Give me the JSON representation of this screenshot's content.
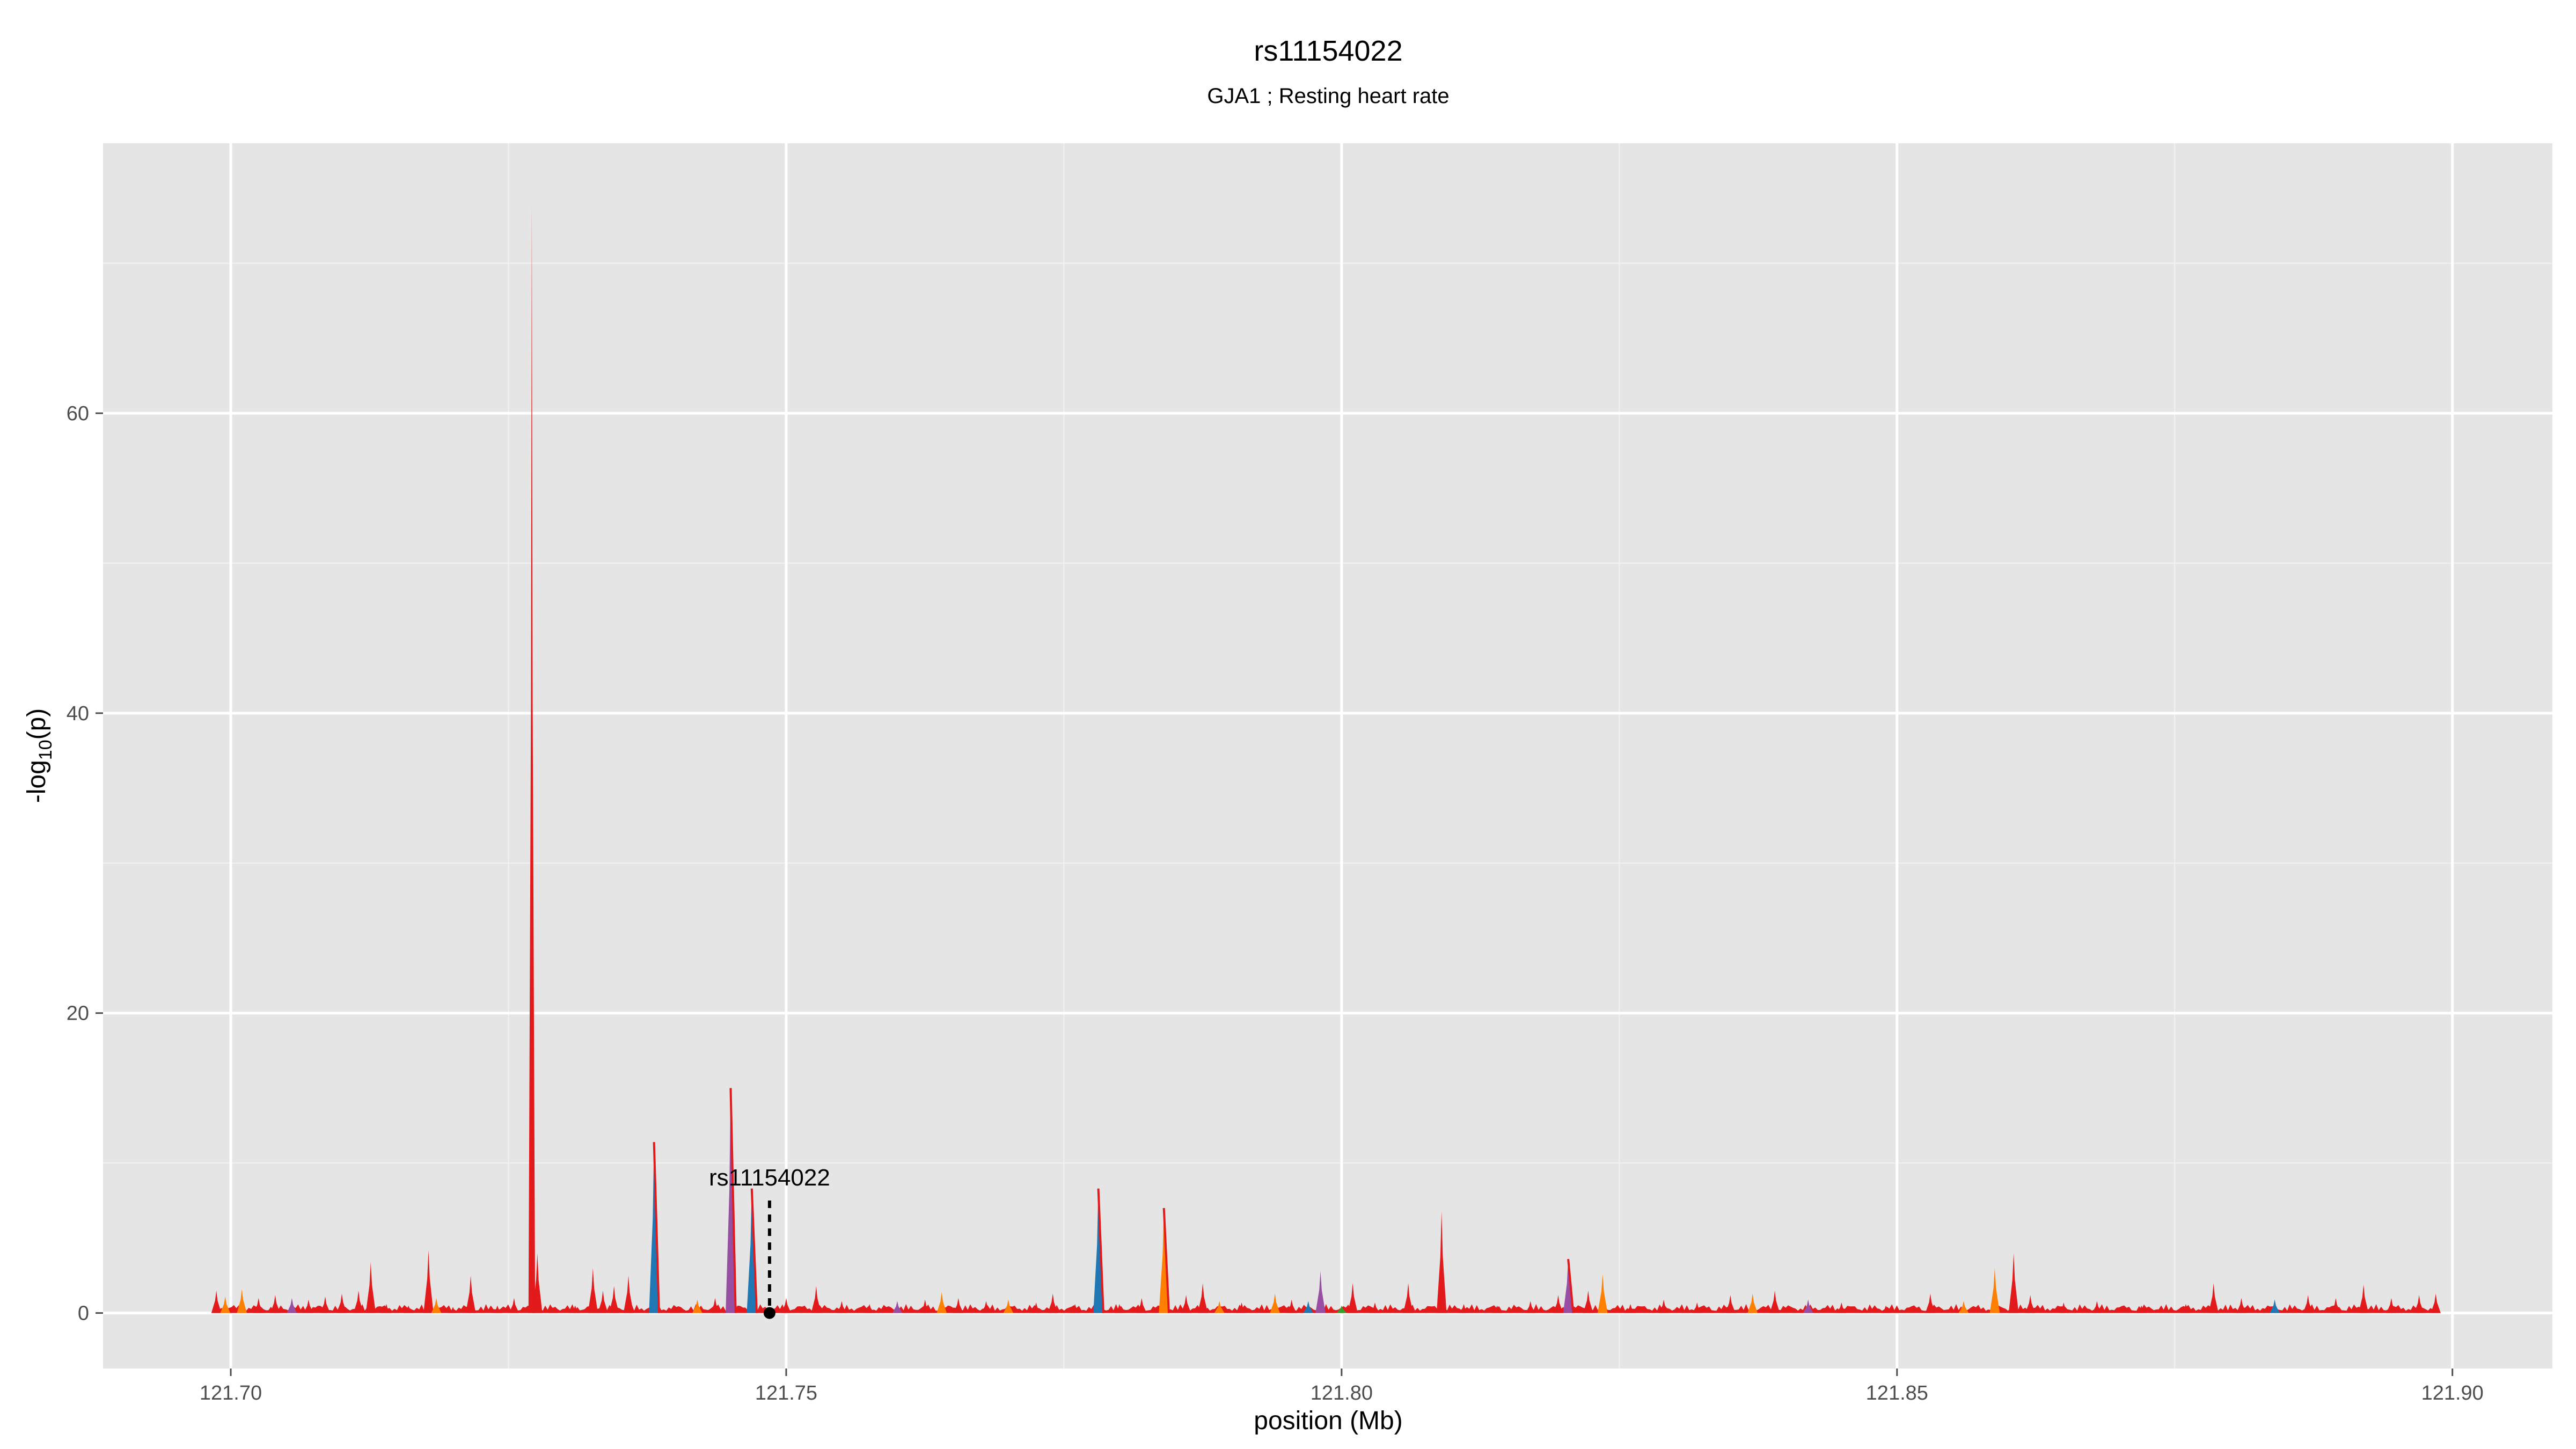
{
  "chart_data": {
    "type": "area",
    "title": "rs11154022",
    "subtitle": "GJA1 ; Resting heart rate",
    "xlabel": "position (Mb)",
    "ylabel_main": "-log",
    "ylabel_sub": "10",
    "ylabel_end": "(p)",
    "xlim": [
      121.6885,
      121.909
    ],
    "ylim": [
      -3.7,
      78
    ],
    "x_ticks": [
      121.7,
      121.75,
      121.8,
      121.85,
      121.9
    ],
    "x_tick_labels": [
      "121.70",
      "121.75",
      "121.80",
      "121.85",
      "121.90"
    ],
    "y_ticks": [
      0,
      20,
      40,
      60
    ],
    "y_tick_labels": [
      "0",
      "20",
      "40",
      "60"
    ],
    "grid": true,
    "background": "#e5e5e5",
    "series_colors": {
      "red": "#e31a1c",
      "blue": "#1f78b4",
      "orange": "#ff7f00",
      "purple": "#984ea3",
      "green": "#33a02c"
    },
    "highlight": {
      "label": "rs11154022",
      "x": 121.7485,
      "y": 0,
      "line_top": 7.5
    },
    "peaks": [
      {
        "x": 121.6987,
        "y": 1.5,
        "color": "red"
      },
      {
        "x": 121.6995,
        "y": 1.1,
        "color": "orange"
      },
      {
        "x": 121.701,
        "y": 1.6,
        "color": "orange"
      },
      {
        "x": 121.7025,
        "y": 1.0,
        "color": "red"
      },
      {
        "x": 121.704,
        "y": 1.2,
        "color": "red"
      },
      {
        "x": 121.7055,
        "y": 1.0,
        "color": "purple"
      },
      {
        "x": 121.707,
        "y": 0.9,
        "color": "red"
      },
      {
        "x": 121.7085,
        "y": 1.1,
        "color": "red"
      },
      {
        "x": 121.71,
        "y": 1.3,
        "color": "red"
      },
      {
        "x": 121.7115,
        "y": 1.5,
        "color": "red"
      },
      {
        "x": 121.7126,
        "y": 3.4,
        "color": "red"
      },
      {
        "x": 121.714,
        "y": 0.6,
        "color": "red"
      },
      {
        "x": 121.716,
        "y": 0.5,
        "color": "red"
      },
      {
        "x": 121.7178,
        "y": 4.2,
        "color": "red"
      },
      {
        "x": 121.7185,
        "y": 1.0,
        "color": "orange"
      },
      {
        "x": 121.72,
        "y": 0.4,
        "color": "red"
      },
      {
        "x": 121.7216,
        "y": 2.5,
        "color": "red"
      },
      {
        "x": 121.724,
        "y": 0.5,
        "color": "red"
      },
      {
        "x": 121.7255,
        "y": 1.0,
        "color": "red"
      },
      {
        "x": 121.7271,
        "y": 74.0,
        "color": "red"
      },
      {
        "x": 121.7276,
        "y": 4.0,
        "color": "red"
      },
      {
        "x": 121.729,
        "y": 0.4,
        "color": "red"
      },
      {
        "x": 121.731,
        "y": 0.5,
        "color": "red"
      },
      {
        "x": 121.7326,
        "y": 3.0,
        "color": "red"
      },
      {
        "x": 121.7335,
        "y": 1.5,
        "color": "red"
      },
      {
        "x": 121.7345,
        "y": 1.8,
        "color": "red"
      },
      {
        "x": 121.7358,
        "y": 2.5,
        "color": "red"
      },
      {
        "x": 121.7381,
        "y": 11.4,
        "color": "blue"
      },
      {
        "x": 121.74,
        "y": 0.5,
        "color": "red"
      },
      {
        "x": 121.742,
        "y": 0.9,
        "color": "orange"
      },
      {
        "x": 121.7436,
        "y": 1.0,
        "color": "red"
      },
      {
        "x": 121.745,
        "y": 15.0,
        "color": "purple"
      },
      {
        "x": 121.7469,
        "y": 8.3,
        "color": "blue"
      },
      {
        "x": 121.75,
        "y": 1.0,
        "color": "red"
      },
      {
        "x": 121.7527,
        "y": 1.8,
        "color": "red"
      },
      {
        "x": 121.755,
        "y": 0.8,
        "color": "red"
      },
      {
        "x": 121.7575,
        "y": 0.6,
        "color": "red"
      },
      {
        "x": 121.76,
        "y": 0.8,
        "color": "purple"
      },
      {
        "x": 121.7625,
        "y": 0.9,
        "color": "red"
      },
      {
        "x": 121.764,
        "y": 1.4,
        "color": "orange"
      },
      {
        "x": 121.7655,
        "y": 1.0,
        "color": "red"
      },
      {
        "x": 121.768,
        "y": 0.8,
        "color": "red"
      },
      {
        "x": 121.77,
        "y": 0.9,
        "color": "orange"
      },
      {
        "x": 121.7725,
        "y": 0.7,
        "color": "red"
      },
      {
        "x": 121.774,
        "y": 1.3,
        "color": "red"
      },
      {
        "x": 121.776,
        "y": 0.6,
        "color": "red"
      },
      {
        "x": 121.7781,
        "y": 8.3,
        "color": "blue"
      },
      {
        "x": 121.78,
        "y": 0.6,
        "color": "red"
      },
      {
        "x": 121.782,
        "y": 1.0,
        "color": "red"
      },
      {
        "x": 121.784,
        "y": 7.0,
        "color": "orange"
      },
      {
        "x": 121.786,
        "y": 1.2,
        "color": "red"
      },
      {
        "x": 121.7875,
        "y": 2.0,
        "color": "red"
      },
      {
        "x": 121.789,
        "y": 0.8,
        "color": "orange"
      },
      {
        "x": 121.791,
        "y": 0.7,
        "color": "red"
      },
      {
        "x": 121.794,
        "y": 1.3,
        "color": "orange"
      },
      {
        "x": 121.7955,
        "y": 0.9,
        "color": "red"
      },
      {
        "x": 121.797,
        "y": 0.8,
        "color": "blue"
      },
      {
        "x": 121.7981,
        "y": 2.8,
        "color": "purple"
      },
      {
        "x": 121.8,
        "y": 0.5,
        "color": "green"
      },
      {
        "x": 121.801,
        "y": 2.0,
        "color": "red"
      },
      {
        "x": 121.803,
        "y": 0.7,
        "color": "red"
      },
      {
        "x": 121.806,
        "y": 2.0,
        "color": "red"
      },
      {
        "x": 121.809,
        "y": 6.8,
        "color": "red"
      },
      {
        "x": 121.811,
        "y": 0.6,
        "color": "red"
      },
      {
        "x": 121.814,
        "y": 0.5,
        "color": "red"
      },
      {
        "x": 121.817,
        "y": 0.8,
        "color": "red"
      },
      {
        "x": 121.8195,
        "y": 1.2,
        "color": "red"
      },
      {
        "x": 121.8204,
        "y": 3.6,
        "color": "purple"
      },
      {
        "x": 121.8222,
        "y": 1.5,
        "color": "red"
      },
      {
        "x": 121.8235,
        "y": 2.6,
        "color": "orange"
      },
      {
        "x": 121.826,
        "y": 0.6,
        "color": "red"
      },
      {
        "x": 121.829,
        "y": 0.9,
        "color": "red"
      },
      {
        "x": 121.832,
        "y": 0.7,
        "color": "red"
      },
      {
        "x": 121.835,
        "y": 1.2,
        "color": "red"
      },
      {
        "x": 121.837,
        "y": 1.3,
        "color": "orange"
      },
      {
        "x": 121.839,
        "y": 1.5,
        "color": "red"
      },
      {
        "x": 121.842,
        "y": 0.9,
        "color": "purple"
      },
      {
        "x": 121.845,
        "y": 0.7,
        "color": "red"
      },
      {
        "x": 121.849,
        "y": 0.5,
        "color": "red"
      },
      {
        "x": 121.853,
        "y": 1.3,
        "color": "red"
      },
      {
        "x": 121.856,
        "y": 0.8,
        "color": "orange"
      },
      {
        "x": 121.8588,
        "y": 3.0,
        "color": "orange"
      },
      {
        "x": 121.8605,
        "y": 4.0,
        "color": "red"
      },
      {
        "x": 121.862,
        "y": 1.2,
        "color": "red"
      },
      {
        "x": 121.865,
        "y": 0.7,
        "color": "red"
      },
      {
        "x": 121.868,
        "y": 0.8,
        "color": "red"
      },
      {
        "x": 121.872,
        "y": 0.5,
        "color": "red"
      },
      {
        "x": 121.876,
        "y": 0.6,
        "color": "red"
      },
      {
        "x": 121.8785,
        "y": 2.0,
        "color": "red"
      },
      {
        "x": 121.881,
        "y": 1.0,
        "color": "red"
      },
      {
        "x": 121.884,
        "y": 0.9,
        "color": "blue"
      },
      {
        "x": 121.887,
        "y": 1.2,
        "color": "red"
      },
      {
        "x": 121.8895,
        "y": 1.0,
        "color": "red"
      },
      {
        "x": 121.892,
        "y": 1.9,
        "color": "red"
      },
      {
        "x": 121.8945,
        "y": 1.0,
        "color": "red"
      },
      {
        "x": 121.897,
        "y": 1.2,
        "color": "red"
      },
      {
        "x": 121.8985,
        "y": 1.3,
        "color": "red"
      }
    ]
  }
}
